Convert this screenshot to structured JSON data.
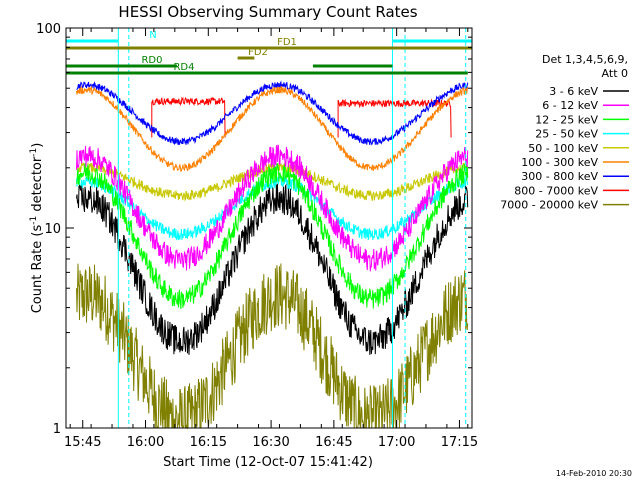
{
  "chart_data": {
    "type": "line",
    "title": "HESSI Observing Summary Count Rates",
    "xlabel": "Start Time (12-Oct-07 15:41:42)",
    "ylabel": "Count Rate (s-1 detector-1)",
    "ylabel_parts": [
      "Count Rate (s",
      "-1",
      " detector",
      "-1",
      ")"
    ],
    "yscale": "log",
    "ylim": [
      1,
      100
    ],
    "y_tick_labels": [
      "1",
      "10",
      "100"
    ],
    "xlim_minutes_after_1541": [
      0,
      97
    ],
    "x_tick_labels": [
      "15:45",
      "16:00",
      "16:15",
      "16:30",
      "16:45",
      "17:00",
      "17:15"
    ],
    "x_tick_minutes": [
      4,
      19,
      34,
      49,
      64,
      79,
      94
    ],
    "footer_date": "14-Feb-2010 20:30",
    "legend": {
      "title_lines": [
        "Det 1,3,4,5,6,9,",
        "Att 0"
      ],
      "placement": "right",
      "entries": [
        {
          "label": "3 - 6 keV",
          "color": "#000000"
        },
        {
          "label": "6 - 12 keV",
          "color": "#ff00ff"
        },
        {
          "label": "12 - 25 keV",
          "color": "#00ff00"
        },
        {
          "label": "25 - 50 keV",
          "color": "#00ffff"
        },
        {
          "label": "50 - 100 keV",
          "color": "#c8c800"
        },
        {
          "label": "100 - 300 keV",
          "color": "#ff8000"
        },
        {
          "label": "300 - 800 keV",
          "color": "#0000ff"
        },
        {
          "label": "800 - 7000 keV",
          "color": "#ff0000"
        },
        {
          "label": "7000 - 20000 keV",
          "color": "#808000"
        }
      ]
    },
    "flag_bars": [
      {
        "label": "N",
        "color": "#00ffff",
        "segments": [
          [
            0,
            12.5
          ],
          [
            78,
            97
          ]
        ]
      },
      {
        "label": "FD1",
        "color": "#808000",
        "segments": [
          [
            0,
            97
          ]
        ]
      },
      {
        "label": "FD2",
        "color": "#808000",
        "segments": [
          [
            41,
            45
          ]
        ]
      },
      {
        "label": "RD0",
        "color": "#008000",
        "segments": [
          [
            0,
            26.5
          ],
          [
            59,
            78
          ]
        ]
      },
      {
        "label": "RD4",
        "color": "#008000",
        "segments": [
          [
            0,
            96
          ]
        ]
      }
    ],
    "series": [
      {
        "name": "3 - 6 keV",
        "color": "#000000",
        "shape": "wave",
        "peak": 14,
        "trough": 2.7,
        "noise": 0.18
      },
      {
        "name": "6 - 12 keV",
        "color": "#ff00ff",
        "shape": "wave",
        "peak": 23,
        "trough": 6.9,
        "noise": 0.13
      },
      {
        "name": "12 - 25 keV",
        "color": "#00ff00",
        "shape": "wave",
        "peak": 19,
        "trough": 4.4,
        "noise": 0.12
      },
      {
        "name": "25 - 50 keV",
        "color": "#00ffff",
        "shape": "wave",
        "peak": 17,
        "trough": 9.3,
        "noise": 0.07
      },
      {
        "name": "50 - 100 keV",
        "color": "#c8c800",
        "shape": "wave",
        "peak": 20,
        "trough": 14.5,
        "noise": 0.06
      },
      {
        "name": "100 - 300 keV",
        "color": "#ff8000",
        "shape": "wave",
        "peak": 49,
        "trough": 20,
        "noise": 0.04
      },
      {
        "name": "300 - 800 keV",
        "color": "#0000ff",
        "shape": "wave",
        "peak": 52,
        "trough": 27,
        "noise": 0.04
      },
      {
        "name": "800 - 7000 keV",
        "color": "#ff0000",
        "shape": "flat",
        "segments": [
          {
            "x": [
              20.5,
              38
            ],
            "y": 43
          },
          {
            "x": [
              65,
              92
            ],
            "y": 42
          }
        ],
        "noise": 0.04
      },
      {
        "name": "7000 - 20000 keV",
        "color": "#808000",
        "shape": "wave",
        "peak": 4.6,
        "trough": 1.1,
        "noise": 0.4
      }
    ],
    "wave_peaks_minutes": [
      5,
      51
    ],
    "wave_troughs_minutes": [
      27.5,
      73
    ],
    "vertical_lines": [
      {
        "x": 12.5,
        "color": "#00ffff",
        "style": "solid"
      },
      {
        "x": 15,
        "color": "#00ffff",
        "style": "dashed"
      },
      {
        "x": 78,
        "color": "#00ffff",
        "style": "solid"
      },
      {
        "x": 81,
        "color": "#00ffff",
        "style": "dashed"
      },
      {
        "x": 95.5,
        "color": "#00ffff",
        "style": "dashed"
      }
    ]
  }
}
